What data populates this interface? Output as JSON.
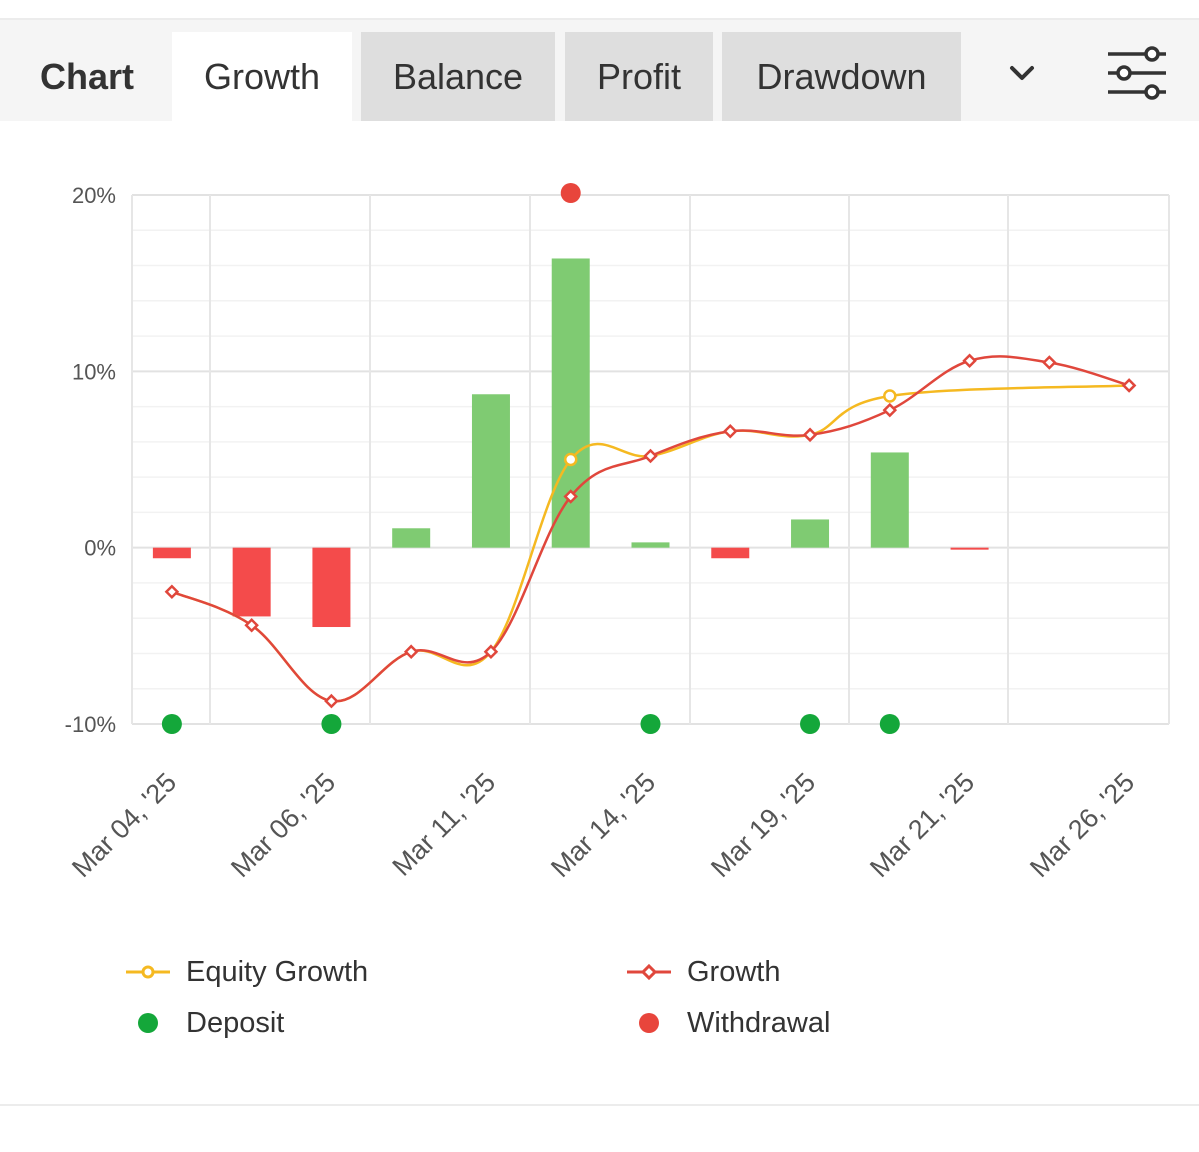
{
  "header": {
    "label": "Chart",
    "tabs": [
      {
        "label": "Growth",
        "active": true
      },
      {
        "label": "Balance",
        "active": false
      },
      {
        "label": "Profit",
        "active": false
      },
      {
        "label": "Drawdown",
        "active": false
      }
    ],
    "dropdown_icon": "chevron-down-icon",
    "settings_icon": "sliders-icon"
  },
  "colors": {
    "equity": "#f5b921",
    "growth": "#e0473c",
    "bar_positive": "#7fcb72",
    "bar_negative": "#f44b4b",
    "deposit": "#14a73a",
    "withdrawal": "#e8453c",
    "grid": "#e6e6e6"
  },
  "chart_data": {
    "type": "bar+line",
    "ylim": [
      -10,
      20
    ],
    "y_ticks": [
      "20%",
      "10%",
      "0%",
      "-10%"
    ],
    "y_tick_values": [
      20,
      10,
      0,
      -10
    ],
    "x_labels": [
      "Mar 04, '25",
      "Mar 06, '25",
      "Mar 11, '25",
      "Mar 14, '25",
      "Mar 19, '25",
      "Mar 21, '25",
      "Mar 26, '25"
    ],
    "bars": [
      -0.6,
      -3.9,
      -4.5,
      1.1,
      8.7,
      16.4,
      0.3,
      -0.6,
      1.6,
      5.4,
      -0.1
    ],
    "growth": [
      -2.5,
      -4.4,
      -8.7,
      -5.9,
      -5.9,
      2.9,
      5.2,
      6.6,
      6.4,
      7.8,
      10.6,
      10.5,
      9.2
    ],
    "equity": [
      -2.5,
      -4.4,
      -8.7,
      -5.9,
      -5.9,
      5.0,
      5.2,
      6.6,
      6.4,
      8.6,
      9.2
    ],
    "deposits": [
      0,
      2,
      6,
      8,
      9
    ],
    "withdrawals": [
      5
    ],
    "legend": {
      "equity": "Equity Growth",
      "growth": "Growth",
      "deposit": "Deposit",
      "withdrawal": "Withdrawal"
    }
  }
}
